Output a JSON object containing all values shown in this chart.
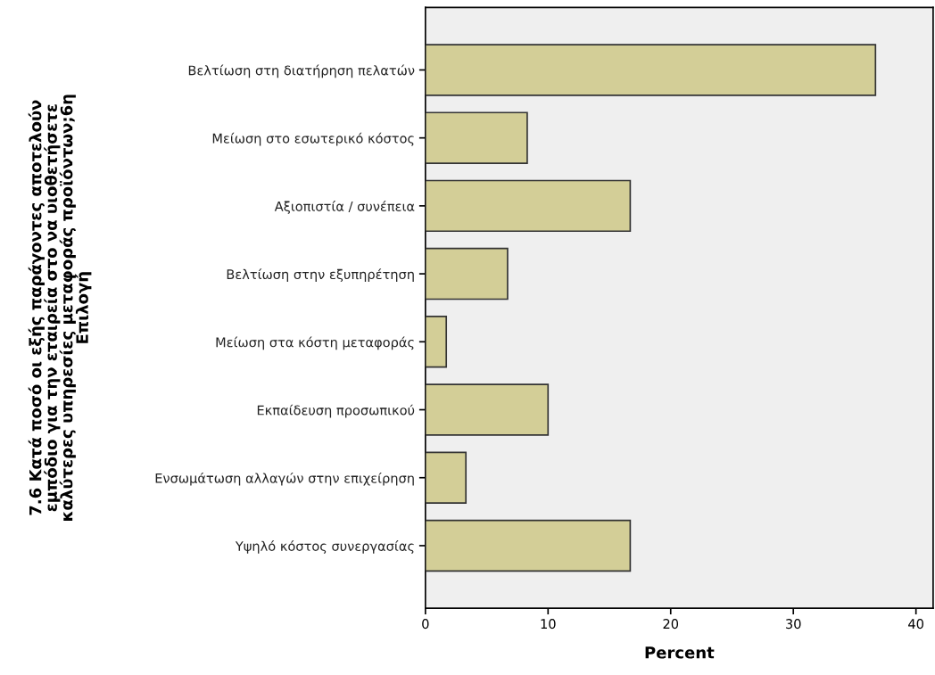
{
  "chart_data": {
    "type": "bar",
    "orientation": "horizontal",
    "xlabel": "Percent",
    "ylabel": "7.6 Κατά ποσό οι εξής παράγοντες αποτελούν\nεμπόδιο για την εταιρεία στο να υιοθετήσετε\nκαλύτερες υπηρεσίες μεταφοράς προϊόντων;6η\nΕπιλογή",
    "categories": [
      "Βελτίωση στη διατήρηση πελατών",
      "Μείωση στο εσωτερικό κόστος",
      "Αξιοπιστία / συνέπεια",
      "Βελτίωση στην εξυπηρέτηση",
      "Μείωση στα κόστη μεταφοράς",
      "Εκπαίδευση προσωπικού",
      "Ενσωμάτωση αλλαγών στην επιχείρηση",
      "Υψηλό κόστος συνεργασίας"
    ],
    "values": [
      36.7,
      8.3,
      16.7,
      6.7,
      1.7,
      10.0,
      3.3,
      16.7
    ],
    "color": "#d3ce97",
    "xlim": [
      0,
      41.4
    ],
    "xticks": [
      0,
      10,
      20,
      30,
      40
    ],
    "grid": false
  }
}
